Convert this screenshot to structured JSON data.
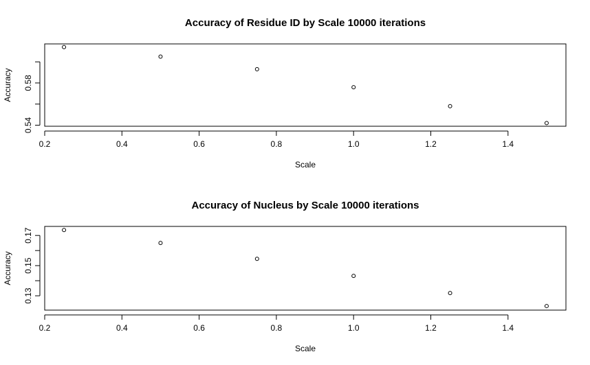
{
  "chart_data": [
    {
      "type": "scatter",
      "title": "Accuracy of Residue ID by Scale 10000 iterations",
      "x_label": "Scale",
      "y_label": "Accuracy",
      "x": [
        0.25,
        0.5,
        0.75,
        1.0,
        1.25,
        1.5
      ],
      "values": [
        0.614,
        0.605,
        0.593,
        0.576,
        0.558,
        0.542
      ],
      "color": "#000000",
      "xlim": [
        0.2,
        1.55
      ],
      "ylim": [
        0.539,
        0.617
      ],
      "xticks": [
        0.2,
        0.4,
        0.6,
        0.8,
        {
          "value": 1.0,
          "label": "1.0"
        },
        1.2,
        1.4
      ],
      "yticks": [
        0.54,
        {
          "value": 0.56,
          "label": null
        },
        0.58,
        {
          "value": 0.6,
          "label": null
        }
      ]
    },
    {
      "type": "scatter",
      "title": "Accuracy of Nucleus by Scale 10000 iterations",
      "x_label": "Scale",
      "y_label": "Accuracy",
      "x": [
        0.25,
        0.5,
        0.75,
        1.0,
        1.25,
        1.5
      ],
      "values": [
        0.1736,
        0.165,
        0.1545,
        0.1432,
        0.1318,
        0.1232
      ],
      "color": "#000000",
      "xlim": [
        0.2,
        1.55
      ],
      "ylim": [
        0.1205,
        0.176
      ],
      "xticks": [
        0.2,
        0.4,
        0.6,
        0.8,
        {
          "value": 1.0,
          "label": "1.0"
        },
        1.2,
        1.4
      ],
      "yticks": [
        0.13,
        {
          "value": 0.14,
          "label": null
        },
        0.15,
        {
          "value": 0.16,
          "label": null
        },
        0.17
      ]
    }
  ]
}
